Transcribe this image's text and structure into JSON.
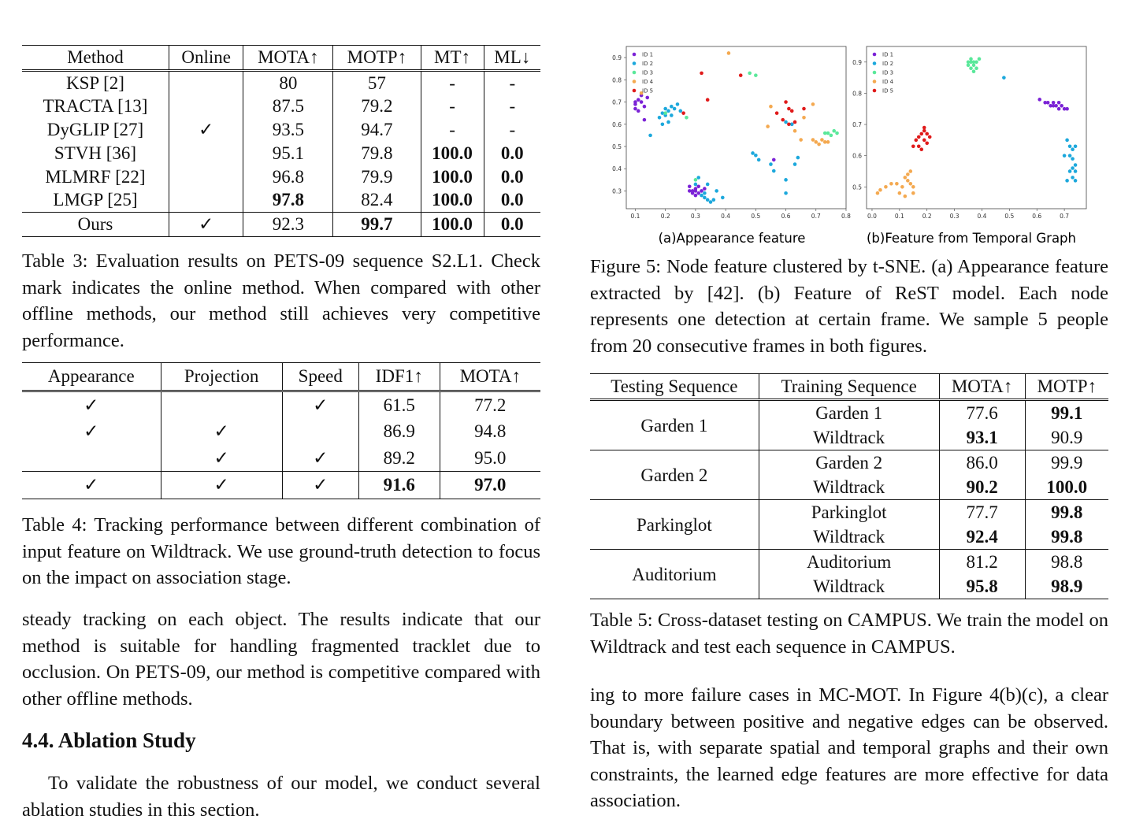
{
  "table3": {
    "headers": [
      "Method",
      "Online",
      "MOTA↑",
      "MOTP↑",
      "MT↑",
      "ML↓"
    ],
    "rows": [
      {
        "method": "KSP [2]",
        "online": "",
        "mota": "80",
        "motp": "57",
        "mt": "-",
        "ml": "-"
      },
      {
        "method": "TRACTA [13]",
        "online": "",
        "mota": "87.5",
        "motp": "79.2",
        "mt": "-",
        "ml": "-"
      },
      {
        "method": "DyGLIP [27]",
        "online": "✓",
        "mota": "93.5",
        "motp": "94.7",
        "mt": "-",
        "ml": "-"
      },
      {
        "method": "STVH [36]",
        "online": "",
        "mota": "95.1",
        "motp": "79.8",
        "mt": "100.0",
        "ml": "0.0"
      },
      {
        "method": "MLMRF [22]",
        "online": "",
        "mota": "96.8",
        "motp": "79.9",
        "mt": "100.0",
        "ml": "0.0"
      },
      {
        "method": "LMGP [25]",
        "online": "",
        "mota": "97.8",
        "motp": "82.4",
        "mt": "100.0",
        "ml": "0.0"
      }
    ],
    "ours": {
      "method": "Ours",
      "online": "✓",
      "mota": "92.3",
      "motp": "99.7",
      "mt": "100.0",
      "ml": "0.0"
    },
    "caption": "Table 3: Evaluation results on PETS-09 sequence S2.L1. Check mark indicates the online method. When compared with other offline methods, our method still achieves very competitive performance."
  },
  "table4": {
    "headers": [
      "Appearance",
      "Projection",
      "Speed",
      "IDF1↑",
      "MOTA↑"
    ],
    "rows": [
      {
        "appearance": "✓",
        "projection": "",
        "speed": "✓",
        "idf1": "61.5",
        "mota": "77.2"
      },
      {
        "appearance": "✓",
        "projection": "✓",
        "speed": "",
        "idf1": "86.9",
        "mota": "94.8"
      },
      {
        "appearance": "",
        "projection": "✓",
        "speed": "✓",
        "idf1": "89.2",
        "mota": "95.0"
      }
    ],
    "full": {
      "appearance": "✓",
      "projection": "✓",
      "speed": "✓",
      "idf1": "91.6",
      "mota": "97.0"
    },
    "caption": "Table 4: Tracking performance between different combination of input feature on Wildtrack. We use ground-truth detection to focus on the impact on association stage."
  },
  "left_text": {
    "para1": "steady tracking on each object. The results indicate that our method is suitable for handling fragmented tracklet due to occlusion. On PETS-09, our method is competitive compared with other offline methods.",
    "heading": "4.4. Ablation Study",
    "para2": "To validate the robustness of our model, we conduct several ablation studies in this section."
  },
  "figure5": {
    "label_a": "(a)Appearance feature",
    "label_b": "(b)Feature from Temporal Graph",
    "legend": [
      "ID 1",
      "ID 2",
      "ID 3",
      "ID 4",
      "ID 5"
    ],
    "colors": [
      "#7b22d6",
      "#1ca8dc",
      "#5ae89a",
      "#f4a950",
      "#e01a1a"
    ],
    "caption": "Figure 5: Node feature clustered by t-SNE. (a) Appearance feature extracted by [42]. (b) Feature of ReST model. Each node represents one detection at certain frame. We sample 5 people from 20 consecutive frames in both figures."
  },
  "chart_data": [
    {
      "type": "scatter",
      "subplot": "a",
      "xlim": [
        0.07,
        0.8
      ],
      "ylim": [
        0.22,
        0.95
      ],
      "xticks": [
        "0.1",
        "0.2",
        "0.3",
        "0.4",
        "0.5",
        "0.6",
        "0.7",
        "0.8"
      ],
      "yticks": [
        "0.3",
        "0.4",
        "0.5",
        "0.6",
        "0.7",
        "0.8",
        "0.9"
      ],
      "series": [
        {
          "name": "ID 1",
          "points": [
            [
              0.1,
              0.69
            ],
            [
              0.11,
              0.71
            ],
            [
              0.12,
              0.7
            ],
            [
              0.1,
              0.67
            ],
            [
              0.13,
              0.68
            ],
            [
              0.11,
              0.66
            ],
            [
              0.12,
              0.73
            ],
            [
              0.14,
              0.72
            ],
            [
              0.13,
              0.62
            ],
            [
              0.1,
              0.7
            ],
            [
              0.29,
              0.3
            ],
            [
              0.3,
              0.31
            ],
            [
              0.28,
              0.32
            ],
            [
              0.31,
              0.29
            ],
            [
              0.3,
              0.28
            ],
            [
              0.32,
              0.3
            ],
            [
              0.29,
              0.29
            ],
            [
              0.31,
              0.32
            ],
            [
              0.33,
              0.31
            ],
            [
              0.28,
              0.3
            ],
            [
              0.3,
              0.3
            ],
            [
              0.56,
              0.44
            ],
            [
              0.62,
              0.6
            ]
          ]
        },
        {
          "name": "ID 2",
          "points": [
            [
              0.19,
              0.65
            ],
            [
              0.2,
              0.67
            ],
            [
              0.21,
              0.66
            ],
            [
              0.22,
              0.68
            ],
            [
              0.23,
              0.67
            ],
            [
              0.24,
              0.69
            ],
            [
              0.2,
              0.64
            ],
            [
              0.18,
              0.63
            ],
            [
              0.25,
              0.66
            ],
            [
              0.22,
              0.64
            ],
            [
              0.21,
              0.61
            ],
            [
              0.19,
              0.6
            ],
            [
              0.33,
              0.27
            ],
            [
              0.34,
              0.26
            ],
            [
              0.35,
              0.25
            ],
            [
              0.33,
              0.29
            ],
            [
              0.32,
              0.28
            ],
            [
              0.36,
              0.26
            ],
            [
              0.3,
              0.33
            ],
            [
              0.31,
              0.36
            ],
            [
              0.34,
              0.33
            ],
            [
              0.37,
              0.3
            ],
            [
              0.39,
              0.27
            ],
            [
              0.49,
              0.47
            ],
            [
              0.5,
              0.46
            ],
            [
              0.51,
              0.44
            ],
            [
              0.55,
              0.42
            ],
            [
              0.56,
              0.39
            ],
            [
              0.6,
              0.35
            ],
            [
              0.63,
              0.42
            ],
            [
              0.64,
              0.45
            ],
            [
              0.6,
              0.29
            ],
            [
              0.62,
              0.6
            ],
            [
              0.6,
              0.61
            ],
            [
              0.15,
              0.55
            ]
          ]
        },
        {
          "name": "ID 3",
          "points": [
            [
              0.48,
              0.83
            ],
            [
              0.5,
              0.82
            ],
            [
              0.74,
              0.56
            ],
            [
              0.76,
              0.57
            ],
            [
              0.75,
              0.55
            ],
            [
              0.77,
              0.56
            ],
            [
              0.73,
              0.56
            ],
            [
              0.2,
              0.65
            ],
            [
              0.27,
              0.63
            ],
            [
              0.3,
              0.35
            ]
          ]
        },
        {
          "name": "ID 4",
          "points": [
            [
              0.41,
              0.92
            ],
            [
              0.55,
              0.68
            ],
            [
              0.69,
              0.69
            ],
            [
              0.7,
              0.52
            ],
            [
              0.72,
              0.53
            ],
            [
              0.71,
              0.51
            ],
            [
              0.73,
              0.52
            ],
            [
              0.69,
              0.53
            ],
            [
              0.74,
              0.52
            ],
            [
              0.65,
              0.53
            ],
            [
              0.54,
              0.59
            ],
            [
              0.66,
              0.63
            ],
            [
              0.63,
              0.57
            ],
            [
              0.12,
              0.74
            ]
          ]
        },
        {
          "name": "ID 5",
          "points": [
            [
              0.32,
              0.83
            ],
            [
              0.45,
              0.82
            ],
            [
              0.34,
              0.71
            ],
            [
              0.26,
              0.65
            ],
            [
              0.6,
              0.7
            ],
            [
              0.62,
              0.66
            ],
            [
              0.61,
              0.67
            ],
            [
              0.63,
              0.61
            ],
            [
              0.66,
              0.67
            ],
            [
              0.59,
              0.62
            ],
            [
              0.57,
              0.65
            ],
            [
              0.61,
              0.6
            ]
          ]
        }
      ]
    },
    {
      "type": "scatter",
      "subplot": "b",
      "xlim": [
        -0.02,
        0.78
      ],
      "ylim": [
        0.43,
        0.95
      ],
      "xticks": [
        "0.0",
        "0.1",
        "0.2",
        "0.3",
        "0.4",
        "0.5",
        "0.6",
        "0.7"
      ],
      "yticks": [
        "0.5",
        "0.6",
        "0.7",
        "0.8",
        "0.9"
      ],
      "series": [
        {
          "name": "ID 1",
          "points": [
            [
              0.61,
              0.78
            ],
            [
              0.63,
              0.77
            ],
            [
              0.64,
              0.77
            ],
            [
              0.65,
              0.76
            ],
            [
              0.66,
              0.77
            ],
            [
              0.67,
              0.76
            ],
            [
              0.68,
              0.75
            ],
            [
              0.69,
              0.76
            ],
            [
              0.7,
              0.75
            ],
            [
              0.71,
              0.75
            ],
            [
              0.66,
              0.76
            ],
            [
              0.68,
              0.77
            ]
          ]
        },
        {
          "name": "ID 2",
          "points": [
            [
              0.71,
              0.65
            ],
            [
              0.72,
              0.63
            ],
            [
              0.73,
              0.62
            ],
            [
              0.72,
              0.6
            ],
            [
              0.73,
              0.59
            ],
            [
              0.74,
              0.57
            ],
            [
              0.73,
              0.56
            ],
            [
              0.74,
              0.55
            ],
            [
              0.73,
              0.53
            ],
            [
              0.74,
              0.52
            ],
            [
              0.72,
              0.55
            ],
            [
              0.7,
              0.6
            ],
            [
              0.71,
              0.52
            ],
            [
              0.48,
              0.85
            ],
            [
              0.74,
              0.63
            ]
          ]
        },
        {
          "name": "ID 3",
          "points": [
            [
              0.35,
              0.9
            ],
            [
              0.36,
              0.91
            ],
            [
              0.37,
              0.89
            ],
            [
              0.38,
              0.9
            ],
            [
              0.36,
              0.88
            ],
            [
              0.37,
              0.87
            ],
            [
              0.35,
              0.89
            ],
            [
              0.38,
              0.88
            ],
            [
              0.36,
              0.9
            ],
            [
              0.39,
              0.91
            ],
            [
              0.37,
              0.9
            ]
          ]
        },
        {
          "name": "ID 4",
          "points": [
            [
              0.02,
              0.48
            ],
            [
              0.03,
              0.49
            ],
            [
              0.05,
              0.5
            ],
            [
              0.07,
              0.51
            ],
            [
              0.09,
              0.51
            ],
            [
              0.11,
              0.5
            ],
            [
              0.12,
              0.53
            ],
            [
              0.13,
              0.52
            ],
            [
              0.14,
              0.51
            ],
            [
              0.15,
              0.5
            ],
            [
              0.14,
              0.55
            ],
            [
              0.13,
              0.54
            ],
            [
              0.15,
              0.48
            ],
            [
              0.12,
              0.47
            ],
            [
              0.1,
              0.48
            ]
          ]
        },
        {
          "name": "ID 5",
          "points": [
            [
              0.15,
              0.63
            ],
            [
              0.16,
              0.65
            ],
            [
              0.17,
              0.66
            ],
            [
              0.18,
              0.67
            ],
            [
              0.19,
              0.68
            ],
            [
              0.2,
              0.67
            ],
            [
              0.19,
              0.65
            ],
            [
              0.2,
              0.64
            ],
            [
              0.17,
              0.63
            ],
            [
              0.18,
              0.62
            ],
            [
              0.21,
              0.66
            ],
            [
              0.19,
              0.69
            ]
          ]
        }
      ]
    }
  ],
  "table5": {
    "headers": [
      "Testing Sequence",
      "Training Sequence",
      "MOTA↑",
      "MOTP↑"
    ],
    "groups": [
      {
        "test": "Garden 1",
        "rows": [
          {
            "train": "Garden 1",
            "mota": "77.6",
            "motp": "99.1"
          },
          {
            "train": "Wildtrack",
            "mota": "93.1",
            "motp": "90.9"
          }
        ]
      },
      {
        "test": "Garden 2",
        "rows": [
          {
            "train": "Garden 2",
            "mota": "86.0",
            "motp": "99.9"
          },
          {
            "train": "Wildtrack",
            "mota": "90.2",
            "motp": "100.0"
          }
        ]
      },
      {
        "test": "Parkinglot",
        "rows": [
          {
            "train": "Parkinglot",
            "mota": "77.7",
            "motp": "99.8"
          },
          {
            "train": "Wildtrack",
            "mota": "92.4",
            "motp": "99.8"
          }
        ]
      },
      {
        "test": "Auditorium",
        "rows": [
          {
            "train": "Auditorium",
            "mota": "81.2",
            "motp": "98.8"
          },
          {
            "train": "Wildtrack",
            "mota": "95.8",
            "motp": "98.9"
          }
        ]
      }
    ],
    "caption": "Table 5: Cross-dataset testing on CAMPUS. We train the model on Wildtrack and test each sequence in CAMPUS."
  },
  "right_text": {
    "para1": "ing to more failure cases in MC-MOT. In Figure 4(b)(c), a clear boundary between positive and negative edges can be observed. That is, with separate spatial and temporal graphs and their own constraints, the learned edge features are more effective for data association."
  }
}
